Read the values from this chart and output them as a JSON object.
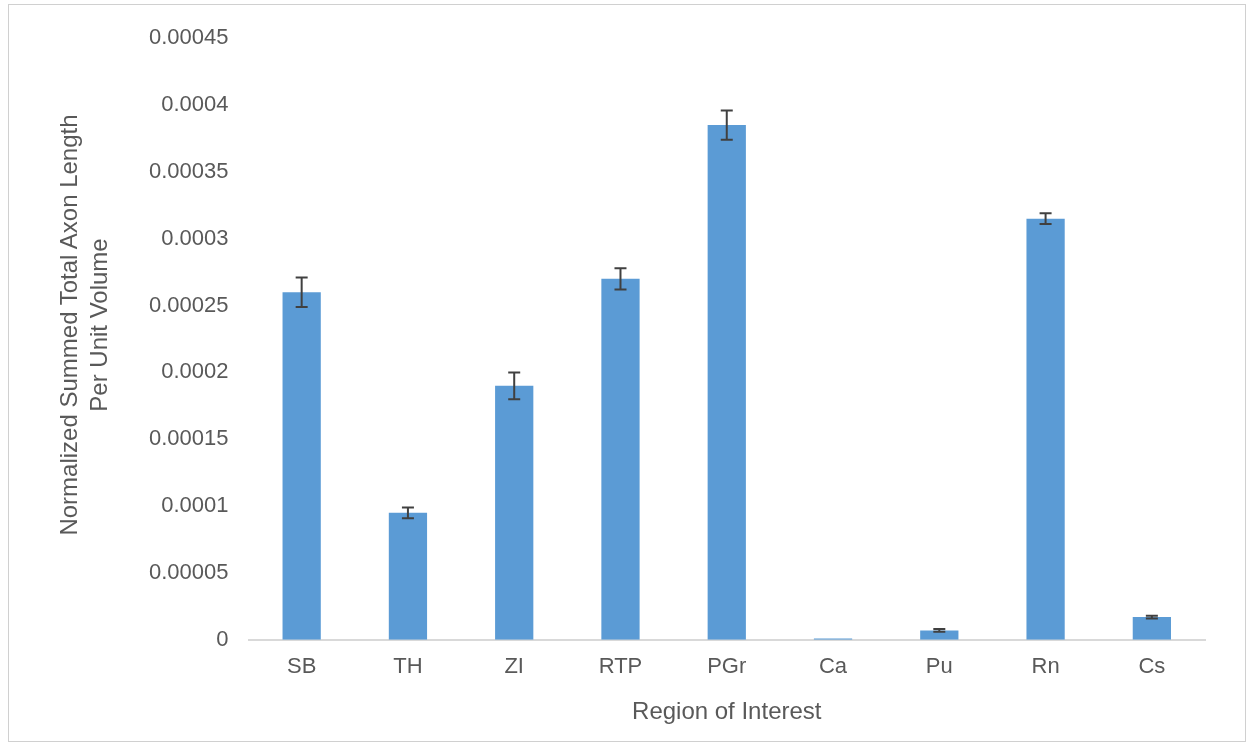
{
  "chart_data": {
    "type": "bar",
    "xlabel": "Region of Interest",
    "ylabel": "Normalized Summed Total Axon Length Per Unit Volume",
    "categories": [
      "SB",
      "TH",
      "ZI",
      "RTP",
      "PGr",
      "Ca",
      "Pu",
      "Rn",
      "Cs"
    ],
    "values": [
      0.00026,
      9.5e-05,
      0.00019,
      0.00027,
      0.000385,
      1e-06,
      7e-06,
      0.000315,
      1.7e-05
    ],
    "errors": [
      1.1e-05,
      4e-06,
      1e-05,
      8e-06,
      1.1e-05,
      null,
      1e-06,
      4e-06,
      1e-06
    ],
    "color": "#5b9bd5",
    "ylim": [
      0,
      0.00045
    ],
    "yticks": [
      0,
      {
        "value": 5e-05,
        "label": "0.00005"
      },
      0.0001,
      0.00015,
      0.0002,
      0.00025,
      0.0003,
      0.00035,
      0.0004,
      0.00045
    ],
    "grid": false,
    "legend": false
  }
}
